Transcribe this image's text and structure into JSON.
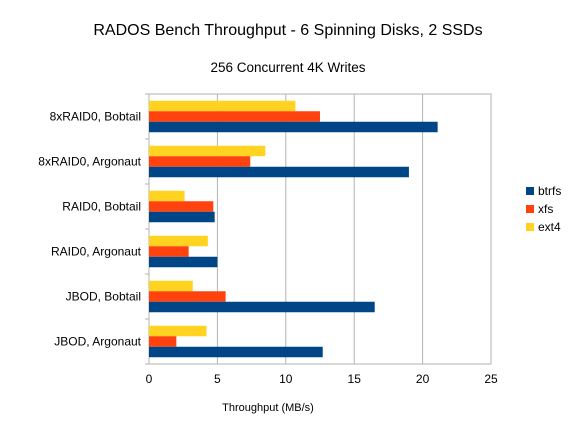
{
  "chart_data": {
    "type": "bar",
    "orientation": "horizontal",
    "title": "RADOS Bench Throughput - 6 Spinning Disks, 2 SSDs",
    "subtitle": "256 Concurrent 4K Writes",
    "xlabel": "Throughput (MB/s)",
    "ylabel": "",
    "xlim": [
      0,
      25
    ],
    "xticks": [
      0,
      5,
      10,
      15,
      20,
      25
    ],
    "grid": true,
    "legend_position": "right",
    "categories": [
      "8xRAID0, Bobtail",
      "8xRAID0, Argonaut",
      "RAID0, Bobtail",
      "RAID0, Argonaut",
      "JBOD, Bobtail",
      "JBOD, Argonaut"
    ],
    "series": [
      {
        "name": "btrfs",
        "color": "#004586",
        "values": [
          21.1,
          19.0,
          4.8,
          5.0,
          16.5,
          12.7
        ]
      },
      {
        "name": "xfs",
        "color": "#ff420e",
        "values": [
          12.5,
          7.4,
          4.7,
          2.9,
          5.6,
          2.0
        ]
      },
      {
        "name": "ext4",
        "color": "#ffd320",
        "values": [
          10.7,
          8.5,
          2.6,
          4.3,
          3.2,
          4.2
        ]
      }
    ]
  }
}
